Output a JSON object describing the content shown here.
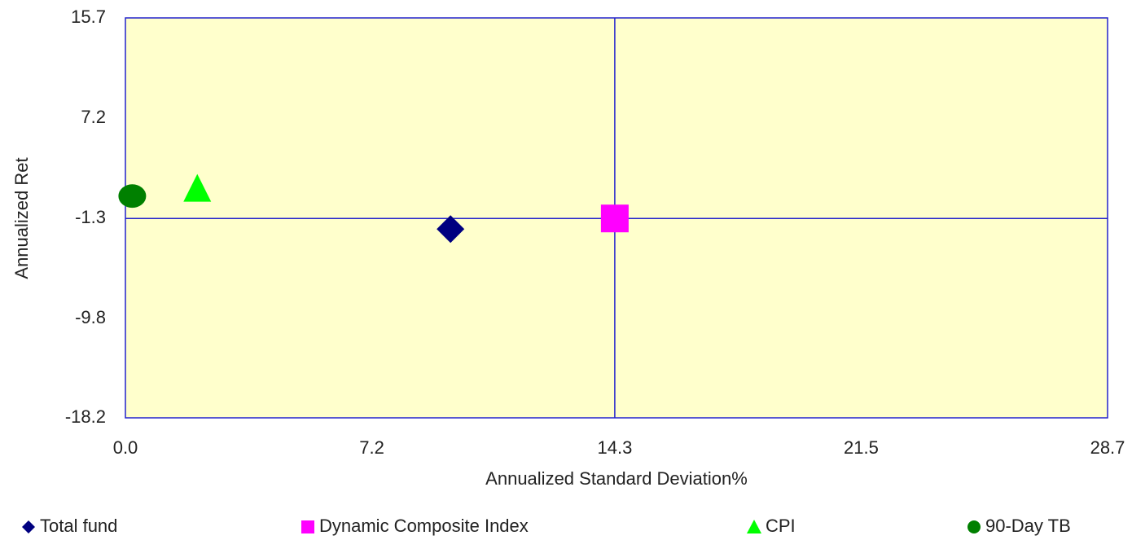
{
  "chart_data": {
    "type": "scatter",
    "x_label": "Annualized Standard Deviation%",
    "y_label": "Annualized Ret",
    "xlim": [
      0,
      28.7
    ],
    "ylim": [
      -18.2,
      15.7
    ],
    "xticks": [
      {
        "value": 0,
        "label": "0.0"
      },
      7.2,
      14.3,
      21.5,
      28.7
    ],
    "yticks": [
      15.7,
      7.2,
      -1.3,
      -9.8,
      -18.2
    ],
    "crosshair_series": "Dynamic Composite Index",
    "legend": "bottom",
    "series": [
      {
        "name": "Total fund",
        "color": "#000080",
        "marker": "diamond",
        "x": [
          9.5
        ],
        "values": [
          -2.2
        ]
      },
      {
        "name": "Dynamic Composite Index",
        "color": "#ff00ff",
        "marker": "square",
        "x": [
          14.3
        ],
        "values": [
          -1.3
        ]
      },
      {
        "name": "CPI",
        "color": "#00ff00",
        "marker": "triangle",
        "x": [
          2.1
        ],
        "values": [
          1.3
        ]
      },
      {
        "name": "90-Day TB",
        "color": "#008000",
        "marker": "circle",
        "x": [
          0.2
        ],
        "values": [
          0.6
        ]
      }
    ]
  }
}
